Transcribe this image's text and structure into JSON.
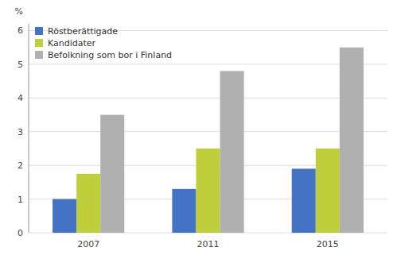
{
  "chart_data": {
    "type": "bar",
    "categories": [
      "2007",
      "2011",
      "2015"
    ],
    "series": [
      {
        "name": "Röstberättigade",
        "color": "#4472C4",
        "values": [
          1.0,
          1.3,
          1.9
        ]
      },
      {
        "name": "Kandidater",
        "color": "#BFCE3B",
        "values": [
          1.75,
          2.5,
          2.5
        ]
      },
      {
        "name": "Befolkning som bor i Finland",
        "color": "#B0B0B0",
        "values": [
          3.5,
          4.8,
          5.5
        ]
      }
    ],
    "ylabel": "%",
    "ylim": [
      0,
      6.2
    ],
    "yticks": [
      0,
      1,
      2,
      3,
      4,
      5,
      6
    ],
    "grid": true,
    "legend": "upper left"
  }
}
